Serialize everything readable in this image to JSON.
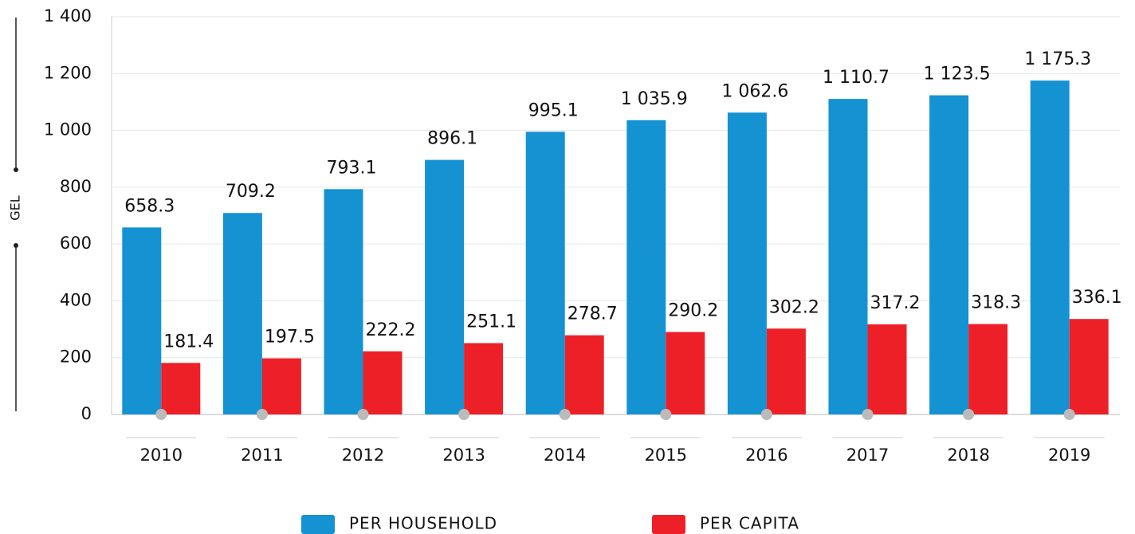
{
  "chart_data": {
    "type": "bar",
    "y_label": "GEL",
    "categories": [
      "2010",
      "2011",
      "2012",
      "2013",
      "2014",
      "2015",
      "2016",
      "2017",
      "2018",
      "2019"
    ],
    "series": [
      {
        "name": "PER HOUSEHOLD",
        "color": "#1592d2",
        "values": [
          658.3,
          709.2,
          793.1,
          896.1,
          995.1,
          1035.9,
          1062.6,
          1110.7,
          1123.5,
          1175.3
        ],
        "value_labels": [
          "658.3",
          "709.2",
          "793.1",
          "896.1",
          "995.1",
          "1 035.9",
          "1 062.6",
          "1 110.7",
          "1 123.5",
          "1 175.3"
        ]
      },
      {
        "name": "PER CAPITA",
        "color": "#ee2027",
        "values": [
          181.4,
          197.5,
          222.2,
          251.1,
          278.7,
          290.2,
          302.2,
          317.2,
          318.3,
          336.1
        ]
      }
    ],
    "ylim": [
      0,
      1400
    ],
    "yticks": [
      0,
      200,
      400,
      600,
      800,
      {
        "value": 1000,
        "label": "1 000"
      },
      {
        "value": 1200,
        "label": "1 200"
      },
      {
        "value": 1400,
        "label": "1 400"
      }
    ],
    "grid": true
  }
}
